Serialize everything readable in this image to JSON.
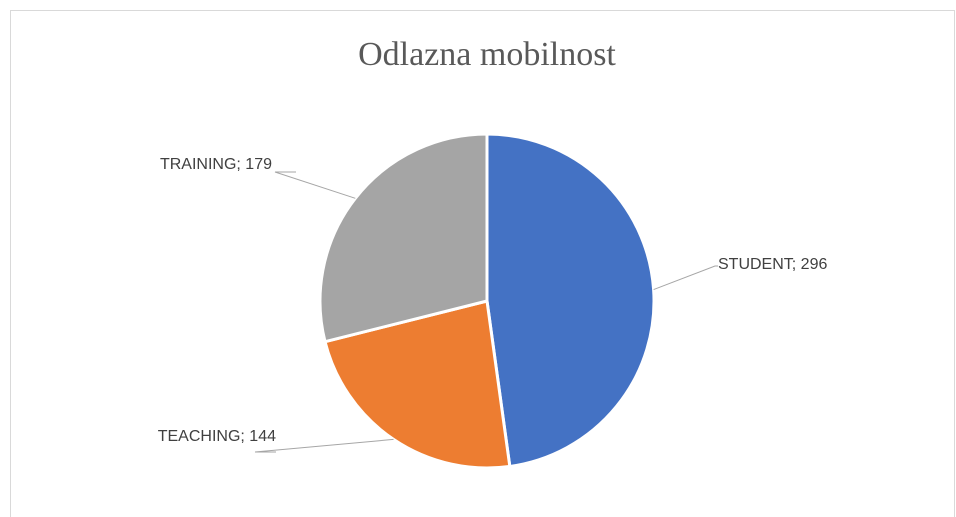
{
  "chart_data": {
    "type": "pie",
    "title": "Odlazna mobilnost",
    "values": [
      296,
      144,
      179
    ],
    "value_labels": [
      "STUDENT; 296",
      "TEACHING; 144",
      "TRAINING; 179"
    ],
    "colors": [
      "#4472c4",
      "#ed7d31",
      "#a5a5a5"
    ]
  }
}
